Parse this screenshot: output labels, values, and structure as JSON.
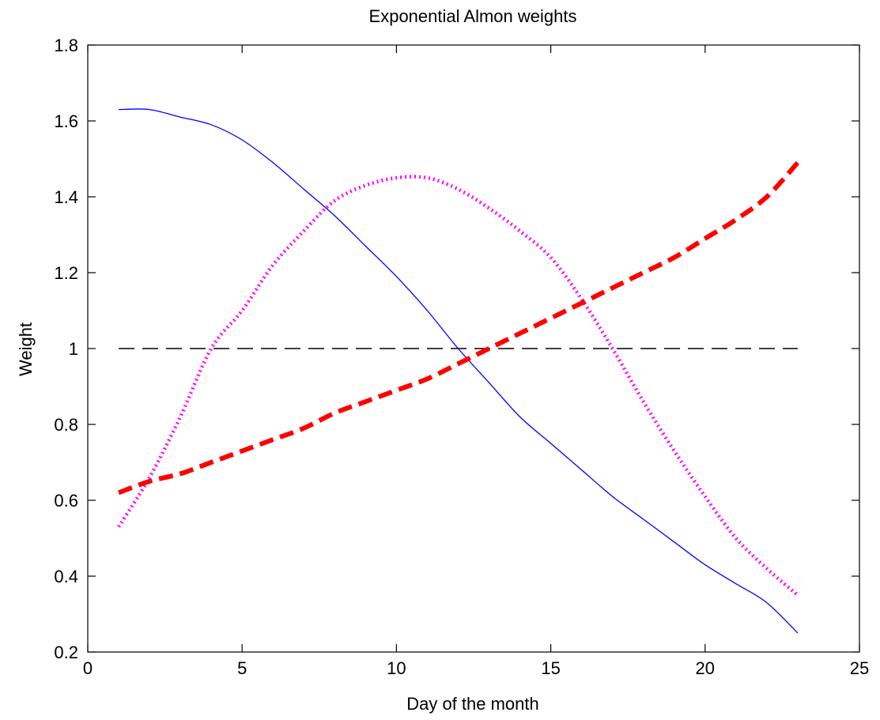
{
  "chart_data": {
    "type": "line",
    "title": "Exponential Almon weights",
    "xlabel": "Day of the month",
    "ylabel": "Weight",
    "xlim": [
      0,
      25
    ],
    "ylim": [
      0.2,
      1.8
    ],
    "xticks": [
      0,
      5,
      10,
      15,
      20,
      25
    ],
    "yticks": [
      0.2,
      0.4,
      0.6,
      0.8,
      1,
      1.2,
      1.4,
      1.6,
      1.8
    ],
    "xtick_labels": [
      "0",
      "5",
      "10",
      "15",
      "20",
      "25"
    ],
    "ytick_labels": [
      "0.2",
      "0.4",
      "0.6",
      "0.8",
      "1",
      "1.2",
      "1.4",
      "1.6",
      "1.8"
    ],
    "grid": false,
    "legend": "none",
    "x": [
      1,
      2,
      3,
      4,
      5,
      6,
      7,
      8,
      9,
      10,
      11,
      12,
      13,
      14,
      15,
      16,
      17,
      18,
      19,
      20,
      21,
      22,
      23
    ],
    "series": [
      {
        "values": [
          1.0,
          1.0,
          1.0,
          1.0,
          1.0,
          1.0,
          1.0,
          1.0,
          1.0,
          1.0,
          1.0,
          1.0,
          1.0,
          1.0,
          1.0,
          1.0,
          1.0,
          1.0,
          1.0,
          1.0,
          1.0,
          1.0,
          1.0
        ],
        "color": "#000000",
        "style": "dashed"
      },
      {
        "values": [
          1.63,
          1.63,
          1.61,
          1.59,
          1.55,
          1.49,
          1.42,
          1.35,
          1.27,
          1.19,
          1.1,
          1.0,
          0.91,
          0.82,
          0.75,
          0.68,
          0.61,
          0.55,
          0.49,
          0.43,
          0.38,
          0.33,
          0.25
        ],
        "color": "#0000ff",
        "style": "solid"
      },
      {
        "values": [
          0.53,
          0.66,
          0.82,
          1.0,
          1.1,
          1.22,
          1.31,
          1.39,
          1.43,
          1.45,
          1.45,
          1.42,
          1.37,
          1.31,
          1.24,
          1.13,
          1.0,
          0.86,
          0.73,
          0.61,
          0.5,
          0.42,
          0.35
        ],
        "color": "#ff00ff",
        "style": "dotted"
      },
      {
        "values": [
          0.62,
          0.65,
          0.67,
          0.7,
          0.73,
          0.76,
          0.79,
          0.83,
          0.86,
          0.89,
          0.92,
          0.96,
          1.0,
          1.04,
          1.08,
          1.12,
          1.16,
          1.2,
          1.24,
          1.29,
          1.34,
          1.4,
          1.49
        ],
        "color": "#ff0000",
        "style": "thick-dashed"
      }
    ]
  }
}
